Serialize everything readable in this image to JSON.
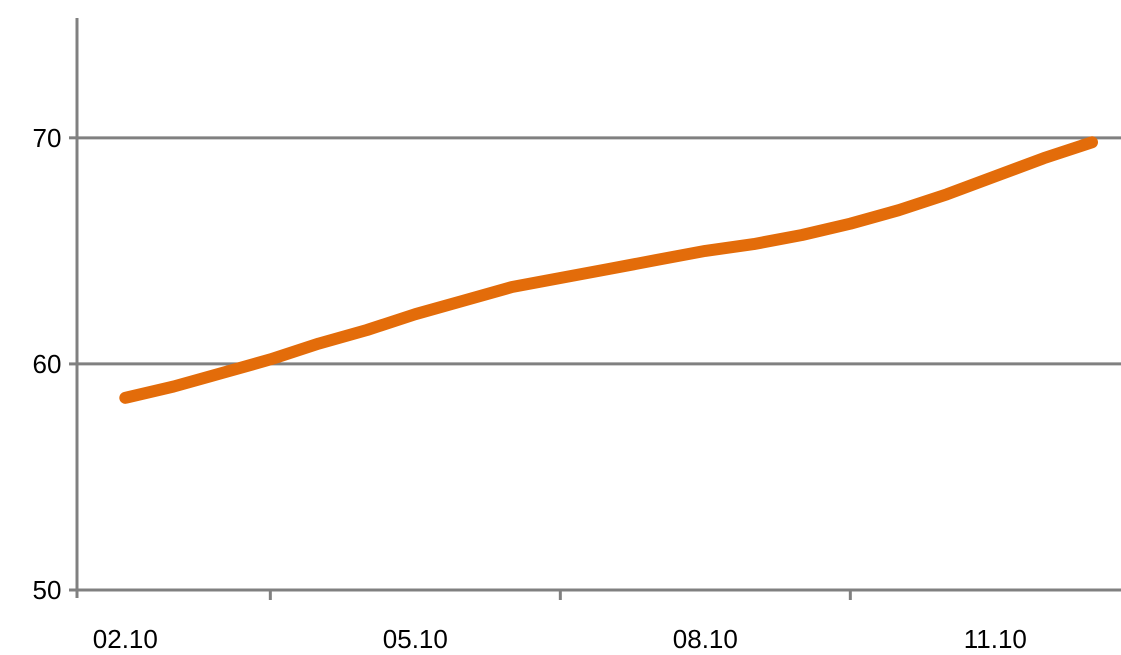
{
  "chart_data": {
    "type": "line",
    "title": "",
    "xlabel": "",
    "ylabel": "",
    "x_tick_labels": [
      "02.10",
      "05.10",
      "08.10",
      "11.10"
    ],
    "x_tick_positions": [
      0.5,
      3.5,
      6.5,
      9.5
    ],
    "x_range": [
      0,
      10.8
    ],
    "y_tick_labels": [
      "50",
      "60",
      "70"
    ],
    "y_ticks": [
      50,
      60,
      70
    ],
    "ylim": [
      50,
      75.3
    ],
    "grid": "horizontal",
    "legend": "none",
    "series": [
      {
        "x": [
          0.5,
          1.0,
          1.5,
          2.0,
          2.5,
          3.0,
          3.5,
          4.0,
          4.5,
          5.0,
          5.5,
          6.0,
          6.5,
          7.0,
          7.5,
          8.0,
          8.5,
          9.0,
          9.5,
          10.0,
          10.5
        ],
        "values": [
          58.5,
          59.0,
          59.6,
          60.2,
          60.9,
          61.5,
          62.2,
          62.8,
          63.4,
          63.8,
          64.2,
          64.6,
          65.0,
          65.3,
          65.7,
          66.2,
          66.8,
          67.5,
          68.3,
          69.1,
          69.8
        ]
      }
    ]
  },
  "colors": {
    "line": "#e36c0a",
    "axis": "#808080",
    "grid": "#808080"
  }
}
